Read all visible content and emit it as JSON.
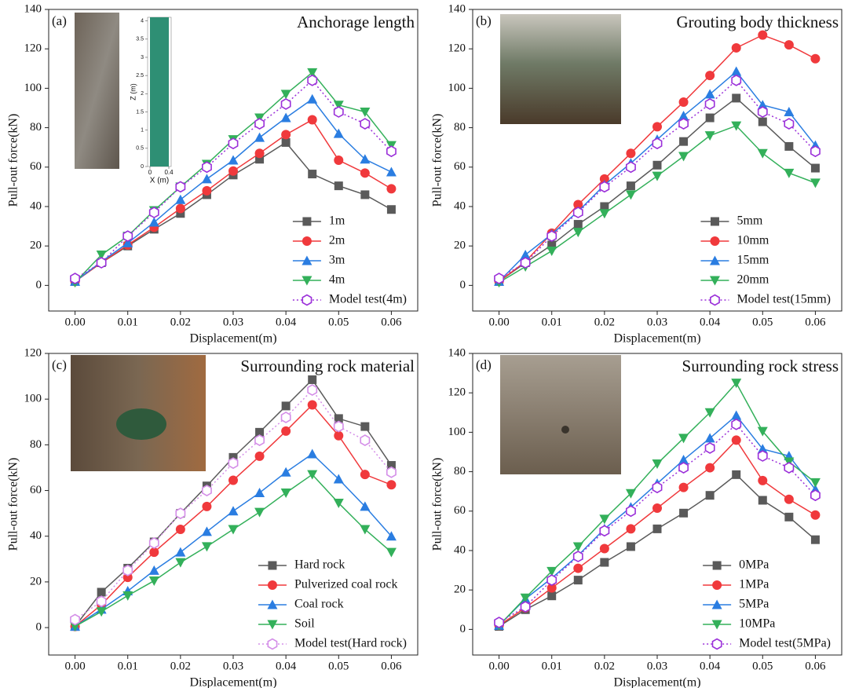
{
  "chart_data": [
    {
      "type": "line",
      "panel": "(a)",
      "title": "Anchorage length",
      "xlabel": "Displacement(m)",
      "ylabel": "Pull-out force(kN)",
      "x": [
        0,
        0.005,
        0.01,
        0.015,
        0.02,
        0.025,
        0.03,
        0.035,
        0.04,
        0.045,
        0.05,
        0.055,
        0.06
      ],
      "xlim": [
        -0.005,
        0.065
      ],
      "xticks": [
        {
          "value": 0,
          "label": "0.00"
        },
        0.01,
        0.02,
        0.03,
        0.04,
        0.05,
        0.06
      ],
      "ylim": [
        -13,
        140
      ],
      "yticks": [
        0,
        20,
        40,
        60,
        80,
        100,
        120,
        140
      ],
      "legend": "lower right",
      "series": [
        {
          "name": "1m",
          "color": "#5a5a5a",
          "marker": "square",
          "values": [
            2,
            11.5,
            20,
            28.5,
            36.5,
            46,
            56,
            64,
            72.5,
            56.5,
            50.5,
            46,
            38.5
          ]
        },
        {
          "name": "2m",
          "color": "#f0393c",
          "marker": "circle",
          "values": [
            2,
            11.5,
            20.5,
            29.5,
            39,
            48,
            58,
            67,
            76.5,
            84,
            63.5,
            57,
            49
          ]
        },
        {
          "name": "3m",
          "color": "#2a7de1",
          "marker": "triangle-up",
          "values": [
            2,
            12,
            21.5,
            32,
            43.5,
            54,
            63.5,
            75,
            85,
            94.5,
            77,
            64,
            57.5
          ]
        },
        {
          "name": "4m",
          "color": "#33b05a",
          "marker": "triangle-down",
          "values": [
            1.5,
            15.5,
            25,
            38,
            50,
            61.5,
            74,
            85,
            97,
            108,
            91.5,
            88,
            71
          ]
        },
        {
          "name": "Model test(4m)",
          "color": "#9b30d9",
          "marker": "hexagon",
          "linestyle": "dotted",
          "values": [
            3.5,
            11.5,
            25,
            37,
            50,
            60,
            72,
            82,
            92,
            104,
            88,
            82,
            68
          ]
        }
      ],
      "inset": {
        "xlabel": "X (m)",
        "ylabel": "Z (m)",
        "xlim": [
          -0.05,
          0.45
        ],
        "xticks": [
          0,
          0.4
        ],
        "ylim": [
          0,
          4.1
        ],
        "yticks": [
          0,
          0.5,
          1,
          1.5,
          2,
          2.5,
          3,
          3.5,
          4
        ]
      }
    },
    {
      "type": "line",
      "panel": "(b)",
      "title": "Grouting body thickness",
      "xlabel": "Displacement(m)",
      "ylabel": "Pull-out force(kN)",
      "x": [
        0,
        0.005,
        0.01,
        0.015,
        0.02,
        0.025,
        0.03,
        0.035,
        0.04,
        0.045,
        0.05,
        0.055,
        0.06
      ],
      "xlim": [
        -0.005,
        0.065
      ],
      "xticks": [
        {
          "value": 0,
          "label": "0.00"
        },
        0.01,
        0.02,
        0.03,
        0.04,
        0.05,
        0.06
      ],
      "ylim": [
        -13,
        140
      ],
      "yticks": [
        0,
        20,
        40,
        60,
        80,
        100,
        120,
        140
      ],
      "legend": "lower right",
      "series": [
        {
          "name": "5mm",
          "color": "#5a5a5a",
          "marker": "square",
          "values": [
            2,
            11.5,
            20.5,
            31,
            40,
            50.5,
            61,
            73,
            85,
            95,
            83,
            70.5,
            59.5
          ]
        },
        {
          "name": "10mm",
          "color": "#f0393c",
          "marker": "circle",
          "values": [
            2,
            12,
            26.5,
            41,
            54,
            67,
            80.5,
            93,
            106.5,
            120.5,
            127,
            122,
            115
          ]
        },
        {
          "name": "15mm",
          "color": "#2a7de1",
          "marker": "triangle-up",
          "values": [
            2,
            15.5,
            26,
            37.5,
            51,
            62,
            74,
            86,
            97,
            108.5,
            91.5,
            88,
            71
          ]
        },
        {
          "name": "20mm",
          "color": "#33b05a",
          "marker": "triangle-down",
          "values": [
            1.5,
            9.5,
            17.5,
            27,
            36.5,
            46,
            55.5,
            65.5,
            76,
            81,
            67,
            57,
            52
          ]
        },
        {
          "name": "Model test(15mm)",
          "color": "#9b30d9",
          "marker": "hexagon",
          "linestyle": "dotted",
          "values": [
            3.5,
            11.5,
            25,
            37,
            50,
            60,
            72,
            82,
            92,
            104,
            88,
            82,
            68
          ]
        }
      ]
    },
    {
      "type": "line",
      "panel": "(c)",
      "title": "Surrounding rock material",
      "xlabel": "Displacement(m)",
      "ylabel": "Pull-out force(kN)",
      "x": [
        0,
        0.005,
        0.01,
        0.015,
        0.02,
        0.025,
        0.03,
        0.035,
        0.04,
        0.045,
        0.05,
        0.055,
        0.06
      ],
      "xlim": [
        -0.005,
        0.065
      ],
      "xticks": [
        {
          "value": 0,
          "label": "0.00"
        },
        0.01,
        0.02,
        0.03,
        0.04,
        0.05,
        0.06
      ],
      "ylim": [
        -12,
        120
      ],
      "yticks": [
        0,
        20,
        40,
        60,
        80,
        100,
        120
      ],
      "legend": "lower right",
      "series": [
        {
          "name": "Hard rock",
          "color": "#5a5a5a",
          "marker": "square",
          "values": [
            0.5,
            15.5,
            26,
            37.5,
            50,
            62,
            74.5,
            85.5,
            97,
            108.5,
            91.5,
            88,
            71
          ]
        },
        {
          "name": "Pulverized coal rock",
          "color": "#f0393c",
          "marker": "circle",
          "values": [
            0.5,
            10,
            22,
            33,
            43,
            53,
            64.5,
            75,
            86,
            97.5,
            84,
            67,
            62.5
          ]
        },
        {
          "name": "Coal rock",
          "color": "#2a7de1",
          "marker": "triangle-up",
          "values": [
            0.5,
            8,
            16,
            25,
            33,
            42,
            51,
            59,
            68,
            76,
            65,
            53,
            40
          ]
        },
        {
          "name": "Soil",
          "color": "#33b05a",
          "marker": "triangle-down",
          "values": [
            0.5,
            7,
            14,
            20.5,
            28.5,
            35.5,
            43,
            50.5,
            59,
            67,
            54.5,
            43,
            33
          ]
        },
        {
          "name": "Model test(Hard rock)",
          "color": "#d48ee8",
          "marker": "hexagon",
          "linestyle": "dotted",
          "values": [
            3.5,
            11.5,
            25,
            37,
            50,
            60,
            72,
            82,
            92,
            104,
            88,
            82,
            68
          ]
        }
      ]
    },
    {
      "type": "line",
      "panel": "(d)",
      "title": "Surrounding rock stress",
      "xlabel": "Displacement(m)",
      "ylabel": "Pull-out force(kN)",
      "x": [
        0,
        0.005,
        0.01,
        0.015,
        0.02,
        0.025,
        0.03,
        0.035,
        0.04,
        0.045,
        0.05,
        0.055,
        0.06
      ],
      "xlim": [
        -0.005,
        0.065
      ],
      "xticks": [
        {
          "value": 0,
          "label": "0.00"
        },
        0.01,
        0.02,
        0.03,
        0.04,
        0.05,
        0.06
      ],
      "ylim": [
        -13,
        140
      ],
      "yticks": [
        0,
        20,
        40,
        60,
        80,
        100,
        120,
        140
      ],
      "legend": "lower right",
      "series": [
        {
          "name": "0MPa",
          "color": "#5a5a5a",
          "marker": "square",
          "values": [
            1.5,
            10,
            17,
            25,
            34,
            42,
            51,
            59,
            68,
            78.5,
            65.5,
            57,
            45.5
          ]
        },
        {
          "name": "1MPa",
          "color": "#f0393c",
          "marker": "circle",
          "values": [
            2,
            11,
            21,
            31,
            41,
            51,
            61.5,
            72,
            82,
            96,
            75.5,
            66,
            58
          ]
        },
        {
          "name": "5MPa",
          "color": "#2a7de1",
          "marker": "triangle-up",
          "values": [
            2,
            15.5,
            26,
            37.5,
            51,
            62,
            74,
            86,
            97,
            108.5,
            91.5,
            88,
            71
          ]
        },
        {
          "name": "10MPa",
          "color": "#33b05a",
          "marker": "triangle-down",
          "values": [
            2,
            16,
            29.5,
            42,
            56,
            69,
            84,
            97,
            110,
            125,
            100.5,
            85,
            74.5
          ]
        },
        {
          "name": "Model test(5MPa)",
          "color": "#9b30d9",
          "marker": "hexagon",
          "linestyle": "dotted",
          "values": [
            3.5,
            11.5,
            25,
            37,
            50,
            60,
            72,
            82,
            92,
            104,
            88,
            82,
            68
          ]
        }
      ]
    }
  ]
}
